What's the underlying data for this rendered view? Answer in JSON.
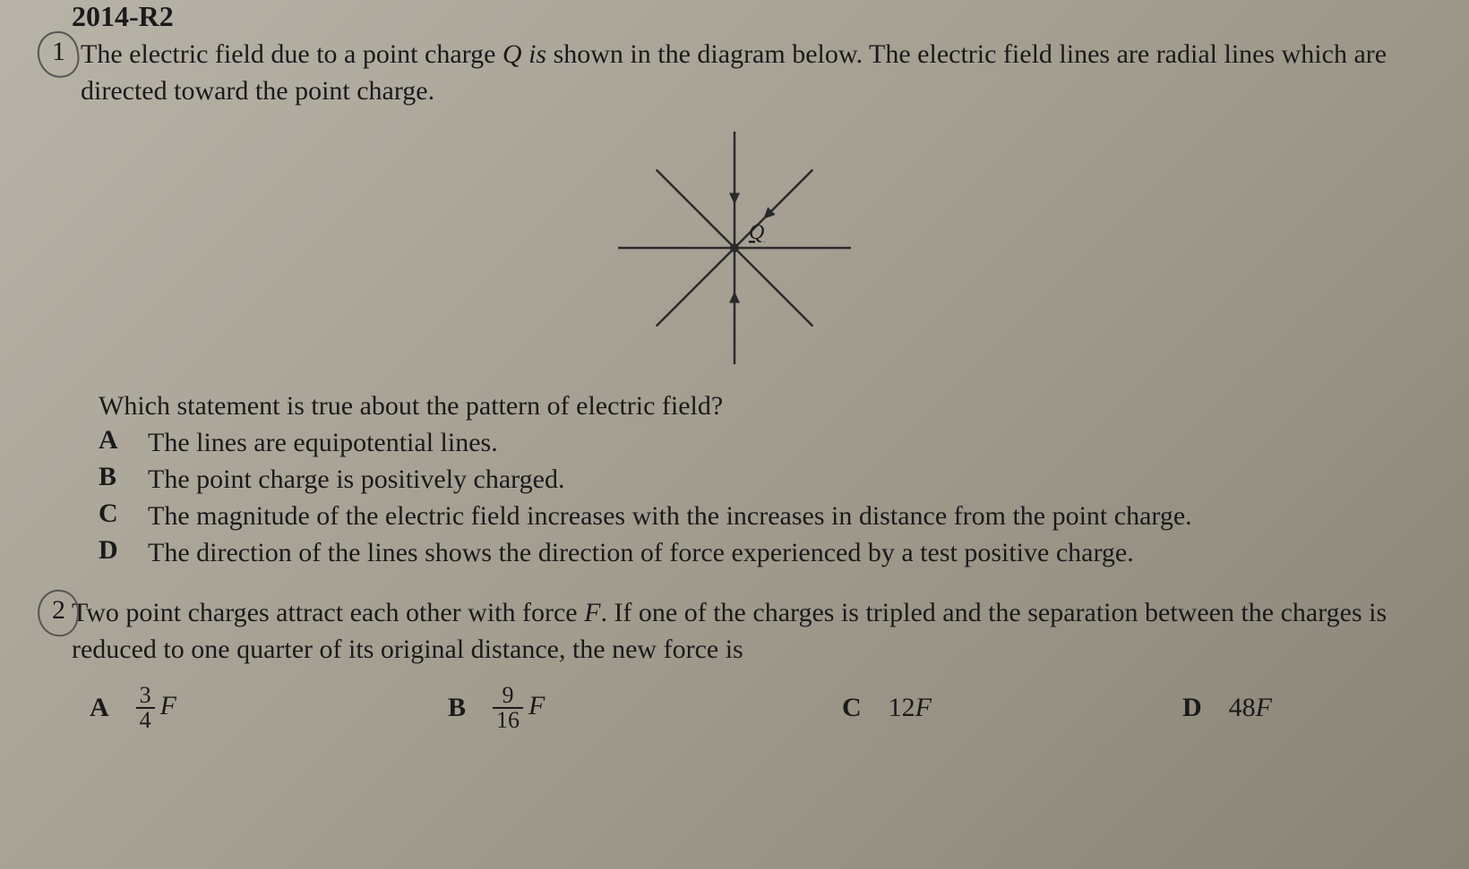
{
  "header": {
    "code": "2014-R2"
  },
  "question1": {
    "number": "1",
    "text_part1": "The electric field due to a point charge ",
    "text_italic1": "Q is",
    "text_part2": " shown in the diagram below. The electric field lines are radial lines which are directed toward the point charge.",
    "diagram": {
      "center_label": "Q",
      "line_color": "#2a2a2a",
      "line_width": 2.5,
      "arrow_size": 10,
      "size": 280,
      "lines": 8
    },
    "sub_question": "Which statement is true about the pattern of electric field?",
    "options": [
      {
        "label": "A",
        "text": "The lines are equipotential lines."
      },
      {
        "label": "B",
        "text": "The point charge is positively charged."
      },
      {
        "label": "C",
        "text": "The magnitude of the electric field increases with the increases in distance from the point charge."
      },
      {
        "label": "D",
        "text": "The direction of the lines shows the direction of force experienced by a test positive charge."
      }
    ]
  },
  "question2": {
    "number": "2",
    "text_part1": "Two point charges attract each other with force ",
    "text_italic1": "F",
    "text_part2": ". If one of the charges is tripled and the separation between the charges is reduced to one quarter of its original distance, the new force is",
    "options": [
      {
        "label": "A",
        "frac_num": "3",
        "frac_den": "4",
        "suffix": "F"
      },
      {
        "label": "B",
        "frac_num": "9",
        "frac_den": "16",
        "suffix": "F"
      },
      {
        "label": "C",
        "plain": "12",
        "suffix": "F"
      },
      {
        "label": "D",
        "plain": "48",
        "suffix": "F"
      }
    ]
  }
}
